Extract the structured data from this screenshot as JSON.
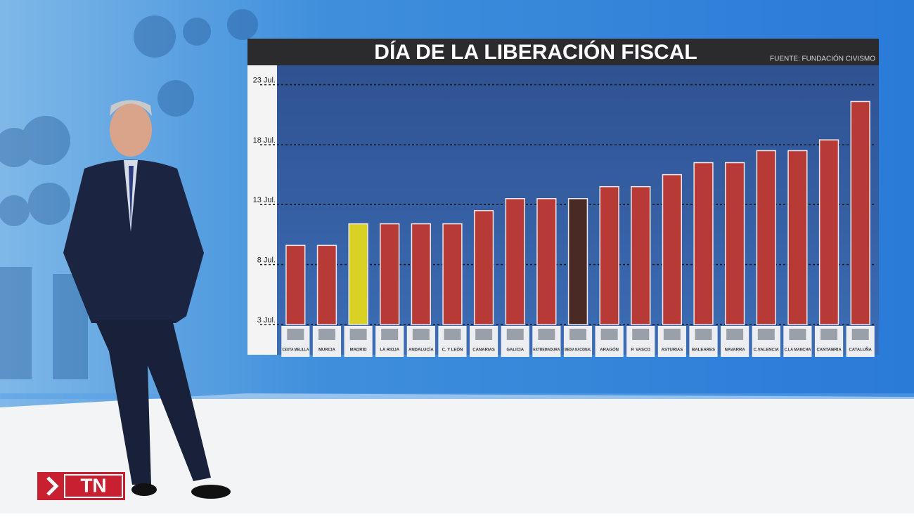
{
  "chart_data": {
    "type": "bar",
    "title": "DÍA DE  LA LIBERACIÓN FISCAL",
    "source": "FUENTE: FUNDACIÓN CIVISMO",
    "categories": [
      "CEUTA MELILLA",
      "MURCIA",
      "MADRID",
      "LA RIOJA",
      "ANDALUCÍA",
      "C. Y LEÓN",
      "CANARIAS",
      "GALICIA",
      "EXTREMADURA",
      "MEDIA NACIONAL",
      "ARAGÓN",
      "P. VASCO",
      "ASTURIAS",
      "BALEARES",
      "NAVARRA",
      "C.VALENCIA",
      "C.LA MANCHA",
      "CANTABRIA",
      "CATALUÑA"
    ],
    "values": [
      9.6,
      9.6,
      11.4,
      11.4,
      11.4,
      11.4,
      12.5,
      13.5,
      13.5,
      13.5,
      14.5,
      14.5,
      15.5,
      16.5,
      16.5,
      17.5,
      17.5,
      18.4,
      21.6
    ],
    "colors": [
      "#b73a36",
      "#b73a36",
      "#d9d124",
      "#b73a36",
      "#b73a36",
      "#b73a36",
      "#b73a36",
      "#b73a36",
      "#b73a36",
      "#4a2a24",
      "#b73a36",
      "#b73a36",
      "#b73a36",
      "#b73a36",
      "#b73a36",
      "#b73a36",
      "#b73a36",
      "#b73a36",
      "#b73a36"
    ],
    "ylim": [
      3,
      24.5
    ],
    "yticks": [
      {
        "value": 3,
        "label": "3 Jul."
      },
      {
        "value": 8,
        "label": "8 Jul."
      },
      {
        "value": 13,
        "label": "13 Jul."
      },
      {
        "value": 18,
        "label": "18 Jul."
      },
      {
        "value": 23,
        "label": "23 Jul."
      }
    ],
    "grid": true
  },
  "logo": "TN"
}
